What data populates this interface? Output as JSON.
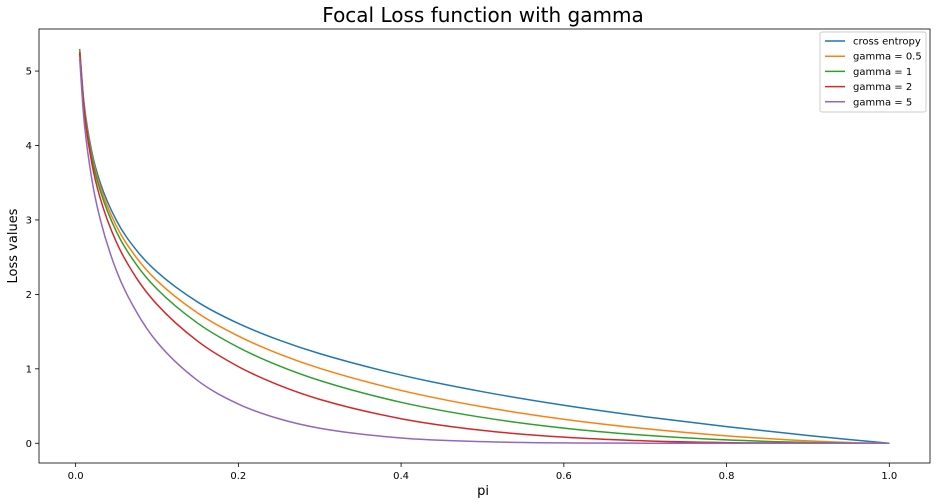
{
  "chart_data": {
    "type": "line",
    "title": "Focal Loss function with gamma",
    "xlabel": "pi",
    "ylabel": "Loss values",
    "xlim": [
      -0.045,
      1.05
    ],
    "ylim": [
      -0.265,
      5.565
    ],
    "xticks": [
      0.0,
      0.2,
      0.4,
      0.6,
      0.8,
      1.0
    ],
    "xtick_labels": [
      "0.0",
      "0.2",
      "0.4",
      "0.6",
      "0.8",
      "1.0"
    ],
    "yticks": [
      0,
      1,
      2,
      3,
      4,
      5
    ],
    "ytick_labels": [
      "0",
      "1",
      "2",
      "3",
      "4",
      "5"
    ],
    "grid": false,
    "legend_position": "top-right",
    "x": [
      0.005,
      0.01,
      0.02,
      0.03,
      0.05,
      0.075,
      0.1,
      0.15,
      0.2,
      0.25,
      0.3,
      0.4,
      0.5,
      0.6,
      0.7,
      0.8,
      0.9,
      0.95,
      1.0
    ],
    "series": [
      {
        "name": "cross entropy",
        "color": "#1f77b4",
        "values": [
          5.298,
          4.605,
          3.912,
          3.507,
          2.996,
          2.59,
          2.303,
          1.897,
          1.609,
          1.386,
          1.204,
          0.916,
          0.693,
          0.511,
          0.357,
          0.223,
          0.105,
          0.051,
          0.0
        ]
      },
      {
        "name": "gamma = 0.5",
        "color": "#ff7f0e",
        "values": [
          5.285,
          4.582,
          3.872,
          3.454,
          2.92,
          2.49,
          2.184,
          1.75,
          1.44,
          1.2,
          1.007,
          0.71,
          0.49,
          0.323,
          0.196,
          0.1,
          0.033,
          0.011,
          0.0
        ]
      },
      {
        "name": "gamma = 1",
        "color": "#2ca02c",
        "values": [
          5.272,
          4.559,
          3.834,
          3.402,
          2.846,
          2.396,
          2.072,
          1.613,
          1.288,
          1.04,
          0.843,
          0.55,
          0.347,
          0.204,
          0.107,
          0.045,
          0.011,
          0.003,
          0.0
        ]
      },
      {
        "name": "gamma = 2",
        "color": "#d62728",
        "values": [
          5.245,
          4.513,
          3.757,
          3.301,
          2.704,
          2.216,
          1.865,
          1.371,
          1.03,
          0.78,
          0.59,
          0.33,
          0.173,
          0.082,
          0.032,
          0.009,
          0.001,
          0.0001,
          0.0
        ]
      },
      {
        "name": "gamma = 5",
        "color": "#9467bd",
        "values": [
          5.167,
          4.38,
          3.541,
          3.019,
          2.323,
          1.762,
          1.36,
          0.842,
          0.527,
          0.329,
          0.202,
          0.071,
          0.022,
          0.005,
          0.001,
          0.0,
          0.0,
          0.0,
          0.0
        ]
      }
    ]
  }
}
